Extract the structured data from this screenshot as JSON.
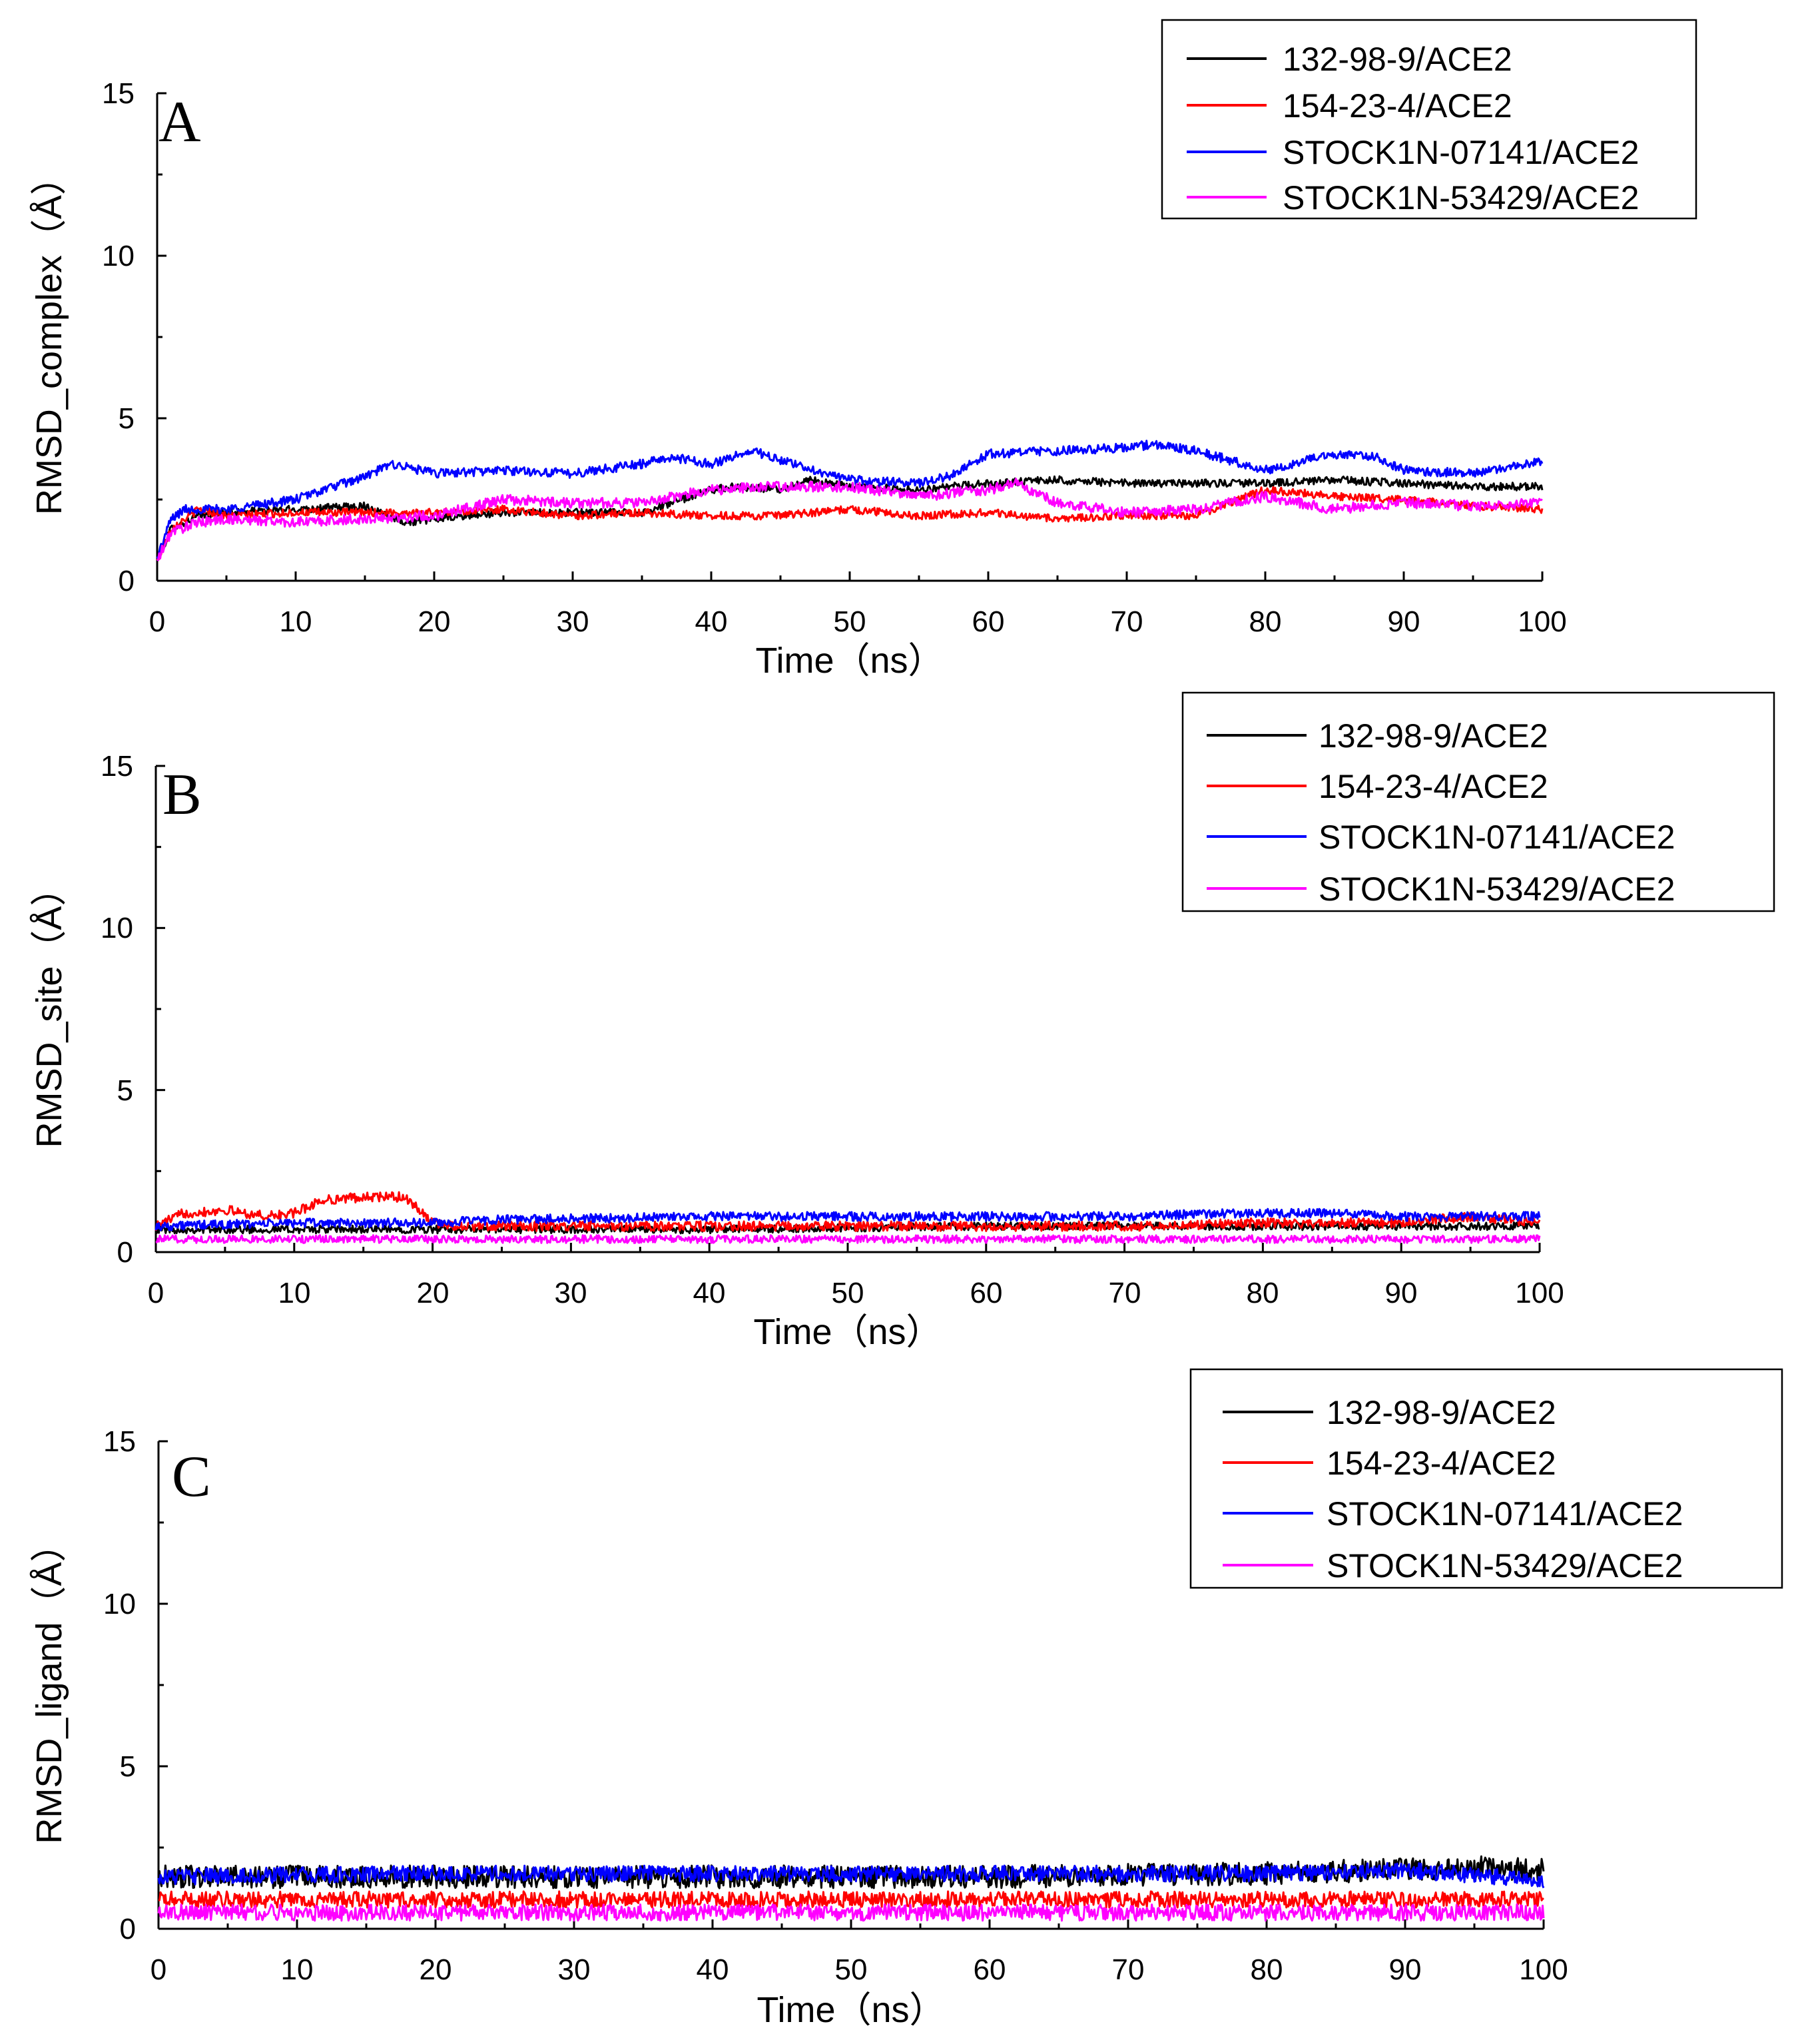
{
  "colors": {
    "132-98-9/ACE2": "#000000",
    "154-23-4/ACE2": "#ff0000",
    "STOCK1N-07141/ACE2": "#0000ff",
    "STOCK1N-53429/ACE2": "#ff00ff"
  },
  "chart_data": [
    {
      "type": "line",
      "panel": "A",
      "xlabel": "Time（ns）",
      "ylabel": "RMSD_complex（Å）",
      "xlim": [
        0,
        100
      ],
      "ylim": [
        0,
        15
      ],
      "xticks": [
        0,
        10,
        20,
        30,
        40,
        50,
        60,
        70,
        80,
        90,
        100
      ],
      "yticks": [
        0,
        5,
        10,
        15
      ],
      "legend_position": "top-right",
      "series": [
        {
          "name": "132-98-9/ACE2",
          "noise": 0.12,
          "x": [
            0,
            1,
            3,
            5,
            10,
            15,
            18,
            20,
            25,
            30,
            35,
            40,
            42,
            45,
            47,
            50,
            55,
            60,
            65,
            70,
            75,
            80,
            85,
            90,
            95,
            100
          ],
          "values": [
            0.6,
            1.6,
            2.0,
            2.1,
            2.2,
            2.3,
            1.8,
            1.9,
            2.1,
            2.1,
            2.1,
            2.8,
            2.9,
            2.8,
            3.1,
            2.9,
            2.8,
            3.0,
            3.1,
            3.0,
            3.0,
            3.0,
            3.1,
            3.0,
            2.9,
            2.9
          ]
        },
        {
          "name": "154-23-4/ACE2",
          "noise": 0.12,
          "x": [
            0,
            1,
            3,
            5,
            10,
            15,
            20,
            25,
            30,
            35,
            40,
            45,
            50,
            55,
            60,
            65,
            70,
            75,
            80,
            85,
            90,
            95,
            100
          ],
          "values": [
            0.6,
            1.6,
            2.2,
            2.0,
            2.1,
            2.1,
            2.1,
            2.2,
            2.0,
            2.1,
            2.0,
            2.0,
            2.2,
            2.0,
            2.1,
            1.9,
            2.0,
            2.0,
            2.8,
            2.6,
            2.5,
            2.3,
            2.2
          ]
        },
        {
          "name": "STOCK1N-07141/ACE2",
          "noise": 0.14,
          "x": [
            0,
            1,
            2,
            5,
            10,
            12,
            15,
            17,
            20,
            25,
            30,
            35,
            37,
            40,
            43,
            45,
            50,
            55,
            57,
            60,
            65,
            70,
            72,
            75,
            80,
            85,
            88,
            90,
            95,
            100
          ],
          "values": [
            0.7,
            1.9,
            2.2,
            2.2,
            2.5,
            2.8,
            3.2,
            3.6,
            3.3,
            3.4,
            3.3,
            3.6,
            3.8,
            3.6,
            4.0,
            3.7,
            3.1,
            3.0,
            3.2,
            3.9,
            4.0,
            4.1,
            4.2,
            4.0,
            3.4,
            3.9,
            3.8,
            3.4,
            3.3,
            3.7
          ]
        },
        {
          "name": "STOCK1N-53429/ACE2",
          "noise": 0.16,
          "x": [
            0,
            1,
            3,
            5,
            10,
            15,
            20,
            25,
            30,
            35,
            40,
            45,
            50,
            55,
            60,
            62,
            65,
            70,
            75,
            80,
            85,
            90,
            95,
            100
          ],
          "values": [
            0.6,
            1.5,
            1.8,
            1.9,
            1.8,
            1.9,
            2.0,
            2.5,
            2.4,
            2.4,
            2.8,
            2.9,
            2.9,
            2.6,
            2.8,
            3.0,
            2.4,
            2.1,
            2.2,
            2.6,
            2.2,
            2.4,
            2.3,
            2.4
          ]
        }
      ]
    },
    {
      "type": "line",
      "panel": "B",
      "xlabel": "Time（ns）",
      "ylabel": "RMSD_site（Å）",
      "xlim": [
        0,
        100
      ],
      "ylim": [
        0,
        15
      ],
      "xticks": [
        0,
        10,
        20,
        30,
        40,
        50,
        60,
        70,
        80,
        90,
        100
      ],
      "yticks": [
        0,
        5,
        10,
        15
      ],
      "legend_position": "top-right",
      "series": [
        {
          "name": "132-98-9/ACE2",
          "noise": 0.12,
          "x": [
            0,
            20,
            40,
            60,
            80,
            100
          ],
          "values": [
            0.7,
            0.7,
            0.7,
            0.8,
            0.8,
            0.8
          ]
        },
        {
          "name": "154-23-4/ACE2",
          "noise": 0.15,
          "x": [
            0,
            2,
            5,
            8,
            10,
            12,
            15,
            18,
            19,
            20,
            22,
            30,
            40,
            50,
            60,
            70,
            80,
            90,
            95,
            100
          ],
          "values": [
            0.8,
            1.2,
            1.3,
            1.1,
            1.2,
            1.6,
            1.7,
            1.7,
            1.3,
            0.9,
            0.8,
            0.8,
            0.8,
            0.8,
            0.8,
            0.8,
            0.9,
            0.9,
            1.1,
            0.9
          ]
        },
        {
          "name": "STOCK1N-07141/ACE2",
          "noise": 0.14,
          "x": [
            0,
            10,
            20,
            25,
            40,
            60,
            70,
            77,
            85,
            90,
            100
          ],
          "values": [
            0.8,
            0.9,
            0.9,
            1.0,
            1.1,
            1.1,
            1.1,
            1.2,
            1.2,
            1.1,
            1.1
          ]
        },
        {
          "name": "STOCK1N-53429/ACE2",
          "noise": 0.12,
          "x": [
            0,
            20,
            40,
            60,
            80,
            100
          ],
          "values": [
            0.4,
            0.4,
            0.4,
            0.4,
            0.4,
            0.4
          ]
        }
      ]
    },
    {
      "type": "line",
      "panel": "C",
      "xlabel": "Time（ns）",
      "ylabel": "RMSD_ligand（Å）",
      "xlim": [
        0,
        100
      ],
      "ylim": [
        0,
        15
      ],
      "xticks": [
        0,
        10,
        20,
        30,
        40,
        50,
        60,
        70,
        80,
        90,
        100
      ],
      "yticks": [
        0,
        5,
        10,
        15
      ],
      "legend_position": "top-right",
      "series": [
        {
          "name": "132-98-9/ACE2",
          "noise": 0.35,
          "x": [
            0,
            20,
            40,
            60,
            80,
            95,
            100
          ],
          "values": [
            1.6,
            1.6,
            1.6,
            1.6,
            1.7,
            1.9,
            1.8
          ]
        },
        {
          "name": "STOCK1N-07141/ACE2",
          "noise": 0.25,
          "x": [
            0,
            20,
            40,
            60,
            80,
            90,
            100
          ],
          "values": [
            1.6,
            1.7,
            1.7,
            1.7,
            1.7,
            1.8,
            1.5
          ]
        },
        {
          "name": "154-23-4/ACE2",
          "noise": 0.25,
          "x": [
            0,
            20,
            40,
            60,
            80,
            100
          ],
          "values": [
            0.9,
            0.9,
            0.9,
            0.9,
            0.9,
            0.9
          ]
        },
        {
          "name": "STOCK1N-53429/ACE2",
          "noise": 0.25,
          "x": [
            0,
            20,
            40,
            60,
            80,
            100
          ],
          "values": [
            0.5,
            0.5,
            0.5,
            0.5,
            0.5,
            0.5
          ]
        }
      ]
    }
  ]
}
